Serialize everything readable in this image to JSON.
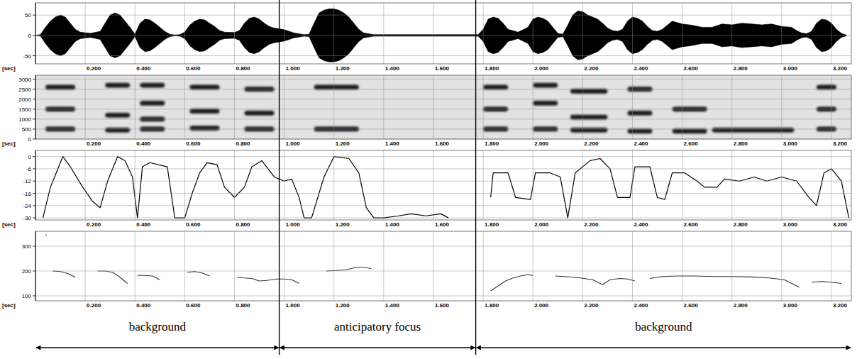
{
  "chart_data": [
    {
      "type": "area",
      "color": "#000000",
      "x_label": "[sec]",
      "grid": true,
      "xlim": [
        0,
        3.28
      ],
      "xticks": [
        {
          "value": 0.2,
          "label": "0.200"
        },
        {
          "value": 0.4,
          "label": "0.400"
        },
        {
          "value": 0.6,
          "label": "0.600"
        },
        {
          "value": 0.8,
          "label": "0.800"
        },
        {
          "value": 1,
          "label": "1.000"
        },
        {
          "value": 1.2,
          "label": "1.200"
        },
        {
          "value": 1.4,
          "label": "1.400"
        },
        {
          "value": 1.6,
          "label": "1.600"
        },
        {
          "value": 1.8,
          "label": "1.800"
        },
        {
          "value": 2,
          "label": "2.000"
        },
        {
          "value": 2.2,
          "label": "2.200"
        },
        {
          "value": 2.4,
          "label": "2.400"
        },
        {
          "value": 2.6,
          "label": "2.600"
        },
        {
          "value": 2.8,
          "label": "2.800"
        },
        {
          "value": 3,
          "label": "3.000"
        },
        {
          "value": 3.2,
          "label": "3.200"
        }
      ],
      "ylim": [
        -70,
        80
      ],
      "yticks": [
        50,
        0,
        -50
      ],
      "x": [
        0,
        0.02,
        0.04,
        0.06,
        0.08,
        0.1,
        0.12,
        0.14,
        0.16,
        0.18,
        0.22,
        0.26,
        0.28,
        0.3,
        0.32,
        0.34,
        0.36,
        0.38,
        0.4,
        0.42,
        0.44,
        0.46,
        0.48,
        0.5,
        0.52,
        0.54,
        0.56,
        0.58,
        0.6,
        0.62,
        0.64,
        0.66,
        0.68,
        0.7,
        0.72,
        0.74,
        0.76,
        0.8,
        0.82,
        0.84,
        0.86,
        0.88,
        0.9,
        0.92,
        0.94,
        0.96,
        1.0,
        1.04,
        1.08,
        1.1,
        1.12,
        1.14,
        1.16,
        1.18,
        1.2,
        1.22,
        1.24,
        1.26,
        1.28,
        1.3,
        1.32,
        1.36,
        1.78,
        1.8,
        1.82,
        1.84,
        1.86,
        1.88,
        1.9,
        1.94,
        1.98,
        2.0,
        2.02,
        2.04,
        2.06,
        2.08,
        2.1,
        2.12,
        2.14,
        2.16,
        2.18,
        2.2,
        2.22,
        2.24,
        2.26,
        2.28,
        2.3,
        2.32,
        2.34,
        2.36,
        2.38,
        2.4,
        2.42,
        2.44,
        2.46,
        2.48,
        2.5,
        2.52,
        2.54,
        2.56,
        2.6,
        2.64,
        2.68,
        2.72,
        2.76,
        2.8,
        2.84,
        2.88,
        2.92,
        2.96,
        3.0,
        3.04,
        3.06,
        3.08,
        3.1,
        3.12,
        3.14,
        3.16,
        3.18,
        3.2,
        3.22,
        3.24,
        3.26
      ],
      "values": [
        0,
        2,
        20,
        35,
        45,
        50,
        45,
        30,
        15,
        8,
        5,
        10,
        30,
        50,
        55,
        50,
        35,
        20,
        3,
        30,
        40,
        38,
        30,
        20,
        10,
        3,
        1,
        2,
        8,
        25,
        35,
        40,
        38,
        30,
        22,
        12,
        8,
        7,
        12,
        30,
        42,
        45,
        40,
        30,
        22,
        18,
        14,
        6,
        2,
        3,
        30,
        55,
        62,
        65,
        65,
        62,
        55,
        45,
        30,
        15,
        6,
        2,
        2,
        15,
        40,
        45,
        42,
        30,
        15,
        8,
        20,
        40,
        45,
        42,
        35,
        20,
        5,
        3,
        25,
        50,
        60,
        58,
        50,
        45,
        40,
        30,
        18,
        12,
        10,
        15,
        35,
        45,
        42,
        35,
        22,
        12,
        10,
        15,
        25,
        35,
        28,
        25,
        20,
        20,
        28,
        26,
        30,
        28,
        26,
        28,
        22,
        20,
        12,
        6,
        4,
        10,
        30,
        40,
        38,
        30,
        15,
        5,
        1
      ]
    },
    {
      "type": "spectrogram",
      "color": "#1a1a1a",
      "x_label": "[sec]",
      "grid": true,
      "xlim": [
        0,
        3.28
      ],
      "xticks": [
        {
          "value": 0.2,
          "label": "0.200"
        },
        {
          "value": 0.4,
          "label": "0.400"
        },
        {
          "value": 0.6,
          "label": "0.600"
        },
        {
          "value": 0.8,
          "label": "0.800"
        },
        {
          "value": 1,
          "label": "1.000"
        },
        {
          "value": 1.2,
          "label": "1.200"
        },
        {
          "value": 1.4,
          "label": "1.400"
        },
        {
          "value": 1.6,
          "label": "1.600"
        },
        {
          "value": 1.8,
          "label": "1.800"
        },
        {
          "value": 2,
          "label": "2.000"
        },
        {
          "value": 2.2,
          "label": "2.200"
        },
        {
          "value": 2.4,
          "label": "2.400"
        },
        {
          "value": 2.6,
          "label": "2.600"
        },
        {
          "value": 2.8,
          "label": "2.800"
        },
        {
          "value": 3,
          "label": "3.000"
        },
        {
          "value": 3.2,
          "label": "3.200"
        }
      ],
      "ylim": [
        0,
        3200
      ],
      "yticks": [
        0,
        500,
        1000,
        1500,
        2000,
        2500,
        3000
      ],
      "segments": [
        {
          "x": [
            0.04,
            0.16
          ],
          "formants": [
            500,
            1500,
            2600
          ]
        },
        {
          "x": [
            0.28,
            0.38
          ],
          "formants": [
            450,
            1200,
            2700
          ]
        },
        {
          "x": [
            0.42,
            0.52
          ],
          "formants": [
            500,
            1000,
            1800,
            2700
          ]
        },
        {
          "x": [
            0.62,
            0.74
          ],
          "formants": [
            550,
            1400,
            2600
          ]
        },
        {
          "x": [
            0.84,
            0.96
          ],
          "formants": [
            500,
            1300,
            2500
          ]
        },
        {
          "x": [
            1.12,
            1.3
          ],
          "formants": [
            500,
            2600
          ]
        },
        {
          "x": [
            1.8,
            1.9
          ],
          "formants": [
            500,
            1500,
            2600
          ]
        },
        {
          "x": [
            2.0,
            2.1
          ],
          "formants": [
            500,
            1800,
            2700
          ]
        },
        {
          "x": [
            2.15,
            2.3
          ],
          "formants": [
            450,
            1100,
            2400
          ]
        },
        {
          "x": [
            2.38,
            2.48
          ],
          "formants": [
            400,
            1300,
            2500
          ]
        },
        {
          "x": [
            2.56,
            2.7
          ],
          "formants": [
            400,
            1500
          ]
        },
        {
          "x": [
            2.72,
            3.05
          ],
          "formants": [
            450
          ]
        },
        {
          "x": [
            3.14,
            3.22
          ],
          "formants": [
            500,
            1500,
            2600
          ]
        }
      ]
    },
    {
      "type": "line",
      "color": "#000000",
      "x_label": "[sec]",
      "grid": true,
      "xlim": [
        0,
        3.28
      ],
      "xticks": [
        {
          "value": 0.2,
          "label": "0.200"
        },
        {
          "value": 0.4,
          "label": "0.400"
        },
        {
          "value": 0.6,
          "label": "0.600"
        },
        {
          "value": 0.8,
          "label": "0.800"
        },
        {
          "value": 1,
          "label": "1.000"
        },
        {
          "value": 1.2,
          "label": "1.200"
        },
        {
          "value": 1.4,
          "label": "1.400"
        },
        {
          "value": 1.6,
          "label": "1.600"
        },
        {
          "value": 1.8,
          "label": "1.800"
        },
        {
          "value": 2,
          "label": "2.000"
        },
        {
          "value": 2.2,
          "label": "2.200"
        },
        {
          "value": 2.4,
          "label": "2.400"
        },
        {
          "value": 2.6,
          "label": "2.600"
        },
        {
          "value": 2.8,
          "label": "2.800"
        },
        {
          "value": 3,
          "label": "3.000"
        },
        {
          "value": 3.2,
          "label": "3.200"
        }
      ],
      "ylim": [
        -31,
        3
      ],
      "yticks": [
        0,
        -6,
        -12,
        -18,
        -24,
        -30
      ],
      "x": [
        0.03,
        0.06,
        0.11,
        0.14,
        0.19,
        0.23,
        0.26,
        0.29,
        0.33,
        0.36,
        0.39,
        0.41,
        0.43,
        0.46,
        0.53,
        0.56,
        0.6,
        0.63,
        0.66,
        0.69,
        0.73,
        0.76,
        0.8,
        0.84,
        0.87,
        0.91,
        0.96,
        1.0,
        1.03,
        1.06,
        1.08,
        1.11,
        1.16,
        1.2,
        1.26,
        1.3,
        1.33,
        1.36,
        1.4,
        1.46,
        1.51,
        1.57,
        1.63,
        1.66,
        1.75,
        1.83,
        1.84,
        1.9,
        1.93,
        1.99,
        2.01,
        2.07,
        2.11,
        2.14,
        2.17,
        2.23,
        2.27,
        2.31,
        2.34,
        2.39,
        2.41,
        2.47,
        2.5,
        2.53,
        2.56,
        2.61,
        2.66,
        2.69,
        2.74,
        2.77,
        2.83,
        2.89,
        2.94,
        3.0,
        3.06,
        3.11,
        3.14,
        3.17,
        3.2,
        3.24,
        3.27
      ],
      "values": [
        -30,
        -15,
        0,
        -5,
        -15,
        -22,
        -25,
        -12,
        0,
        -2,
        -10,
        -30,
        -5,
        -3,
        -5,
        -30,
        -30,
        -18,
        -8,
        -3,
        -4,
        -15,
        -20,
        -15,
        -5,
        -2,
        -10,
        -12,
        -11,
        -20,
        -30,
        -30,
        -10,
        0,
        -1,
        -8,
        -25,
        -30,
        -30,
        -29,
        -28,
        -29,
        -28,
        -30,
        null,
        -20,
        -8,
        -8,
        -20,
        -21,
        -8,
        -8,
        -10,
        -30,
        -8,
        -2,
        -1,
        -6,
        -20,
        -20,
        -5,
        -5,
        -20,
        -21,
        -8,
        -8,
        -12,
        -15,
        -15,
        -11,
        -12,
        -10,
        -12,
        -10,
        -12,
        -20,
        -24,
        -8,
        -6,
        -12,
        -30
      ]
    },
    {
      "type": "line",
      "color": "#333333",
      "x_label": "[sec]",
      "grid": true,
      "xlim": [
        0,
        3.28
      ],
      "xticks": [
        {
          "value": 0.2,
          "label": "0.200"
        },
        {
          "value": 0.4,
          "label": "0.400"
        },
        {
          "value": 0.6,
          "label": "0.600"
        },
        {
          "value": 0.8,
          "label": "0.800"
        },
        {
          "value": 1,
          "label": "1.000"
        },
        {
          "value": 1.2,
          "label": "1.200"
        },
        {
          "value": 1.4,
          "label": "1.400"
        },
        {
          "value": 1.6,
          "label": "1.600"
        },
        {
          "value": 1.8,
          "label": "1.800"
        },
        {
          "value": 2,
          "label": "2.000"
        },
        {
          "value": 2.2,
          "label": "2.200"
        },
        {
          "value": 2.4,
          "label": "2.400"
        },
        {
          "value": 2.6,
          "label": "2.600"
        },
        {
          "value": 2.8,
          "label": "2.800"
        },
        {
          "value": 3,
          "label": "3.000"
        },
        {
          "value": 3.2,
          "label": "3.200"
        }
      ],
      "ylim": [
        80,
        360
      ],
      "yticks": [
        100,
        200,
        300
      ],
      "x": [
        0.04,
        0.05,
        0.07,
        0.1,
        0.13,
        0.16,
        0.2,
        0.25,
        0.28,
        0.31,
        0.34,
        0.37,
        0.39,
        0.41,
        0.44,
        0.47,
        0.5,
        0.55,
        0.61,
        0.64,
        0.67,
        0.7,
        0.75,
        0.81,
        0.84,
        0.87,
        0.9,
        0.93,
        0.97,
        1.0,
        1.03,
        1.06,
        1.1,
        1.17,
        1.21,
        1.25,
        1.29,
        1.32,
        1.35,
        1.5,
        1.83,
        1.86,
        1.89,
        1.92,
        1.95,
        1.98,
        2.0,
        2.05,
        2.09,
        2.14,
        2.19,
        2.24,
        2.28,
        2.31,
        2.35,
        2.38,
        2.41,
        2.44,
        2.47,
        2.52,
        2.58,
        2.65,
        2.72,
        2.8,
        2.88,
        2.95,
        3.01,
        3.05,
        3.07,
        3.1,
        3.12,
        3.16,
        3.2,
        3.24
      ],
      "values": [
        345,
        null,
        200,
        198,
        190,
        175,
        null,
        200,
        200,
        195,
        175,
        150,
        null,
        182,
        182,
        180,
        165,
        null,
        195,
        198,
        192,
        180,
        null,
        175,
        172,
        170,
        160,
        162,
        168,
        168,
        165,
        150,
        null,
        200,
        202,
        205,
        215,
        215,
        210,
        null,
        120,
        140,
        160,
        172,
        180,
        185,
        182,
        null,
        180,
        177,
        172,
        165,
        145,
        165,
        170,
        168,
        160,
        null,
        170,
        178,
        180,
        180,
        178,
        178,
        176,
        172,
        165,
        145,
        135,
        null,
        155,
        158,
        155,
        150
      ],
      "annotations": {
        "segments": [
          {
            "label": "background",
            "start": 0,
            "end": 0.98
          },
          {
            "label": "anticipatory focus",
            "start": 0.98,
            "end": 1.77
          },
          {
            "label": "background",
            "start": 1.77,
            "end": 3.28
          }
        ]
      }
    }
  ]
}
